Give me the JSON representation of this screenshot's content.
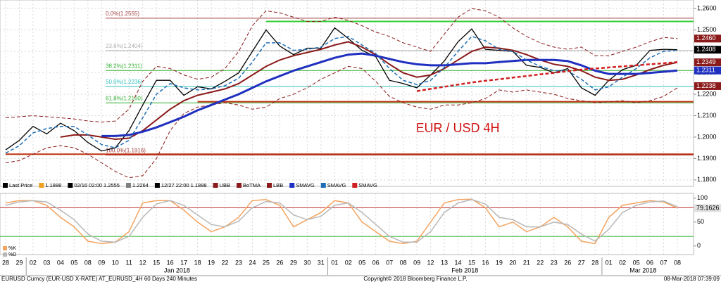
{
  "chart_data": [
    {
      "type": "line",
      "annotation": "EUR / USD 4H",
      "categories": [
        "28",
        "29",
        "02",
        "03",
        "04",
        "05",
        "08",
        "09",
        "10",
        "11",
        "12",
        "15",
        "16",
        "17",
        "18",
        "19",
        "22",
        "23",
        "24",
        "25",
        "26",
        "29",
        "30",
        "31",
        "01",
        "02",
        "05",
        "06",
        "07",
        "08",
        "09",
        "12",
        "13",
        "14",
        "15",
        "16",
        "19",
        "20",
        "21",
        "22",
        "23",
        "26",
        "27",
        "28",
        "01",
        "02",
        "05",
        "06",
        "07",
        "08"
      ],
      "month_labels": [
        "Jan 2018",
        "Feb 2018",
        "Mar 2018"
      ],
      "ylim": [
        1.177,
        1.264
      ],
      "yticks": [
        {
          "value": 1.18,
          "label": "1.1800"
        },
        {
          "value": 1.19,
          "label": "1.1900"
        },
        {
          "value": 1.2,
          "label": "1.2000"
        },
        {
          "value": 1.21,
          "label": "1.2100"
        },
        {
          "value": 1.22,
          "label": "1.2200"
        },
        {
          "value": 1.23,
          "label": "1.2300"
        },
        {
          "value": 1.24,
          "label": "1.2400"
        },
        {
          "value": 1.25,
          "label": "1.2500"
        },
        {
          "value": 1.26,
          "label": "1.2600"
        }
      ],
      "grid": true,
      "series": [
        {
          "name": "Last Price",
          "color": "#000000",
          "width": 1.3,
          "dash": false,
          "values": [
            1.194,
            1.1985,
            1.205,
            1.2015,
            1.2065,
            1.203,
            1.1975,
            1.1935,
            1.195,
            1.203,
            1.215,
            1.2265,
            1.2265,
            1.2195,
            1.2235,
            1.2225,
            1.226,
            1.23,
            1.24,
            1.25,
            1.2425,
            1.2385,
            1.2415,
            1.2415,
            1.251,
            1.246,
            1.2405,
            1.2375,
            1.2265,
            1.225,
            1.223,
            1.229,
            1.2355,
            1.2445,
            1.2505,
            1.241,
            1.2405,
            1.24,
            1.2335,
            1.2325,
            1.23,
            1.232,
            1.223,
            1.2195,
            1.2265,
            1.2315,
            1.2335,
            1.2405,
            1.241,
            1.2408
          ]
        },
        {
          "name": "UBB",
          "color": "#8b1a1a",
          "width": 1,
          "dash": true,
          "values": [
            1.209,
            1.2095,
            1.21,
            1.2095,
            1.209,
            1.2085,
            1.2075,
            1.207,
            1.2075,
            1.213,
            1.226,
            1.233,
            1.232,
            1.229,
            1.227,
            1.228,
            1.232,
            1.24,
            1.252,
            1.259,
            1.258,
            1.256,
            1.254,
            1.254,
            1.256,
            1.2545,
            1.252,
            1.249,
            1.247,
            1.244,
            1.242,
            1.24,
            1.248,
            1.256,
            1.26,
            1.259,
            1.256,
            1.251,
            1.247,
            1.244,
            1.242,
            1.241,
            1.242,
            1.238,
            1.238,
            1.24,
            1.242,
            1.2445,
            1.2465,
            1.246
          ]
        },
        {
          "name": "BoTMA",
          "color": "#8b1a1a",
          "width": 2,
          "dash": false,
          "values": [
            null,
            null,
            null,
            null,
            1.2,
            1.201,
            1.201,
            1.2,
            1.199,
            1.1995,
            1.203,
            1.208,
            1.213,
            1.217,
            1.2195,
            1.221,
            1.2225,
            1.225,
            1.229,
            1.233,
            1.236,
            1.238,
            1.2395,
            1.241,
            1.243,
            1.2445,
            1.242,
            1.2385,
            1.234,
            1.23,
            1.228,
            1.229,
            1.232,
            1.236,
            1.24,
            1.242,
            1.2415,
            1.2405,
            1.2385,
            1.236,
            1.234,
            1.233,
            1.231,
            1.228,
            1.2265,
            1.227,
            1.229,
            1.2315,
            1.2335,
            1.2349
          ]
        },
        {
          "name": "LBB",
          "color": "#8b1a1a",
          "width": 1,
          "dash": true,
          "values": [
            1.188,
            1.189,
            1.192,
            1.195,
            1.196,
            1.195,
            1.192,
            1.188,
            1.184,
            1.181,
            1.182,
            1.19,
            1.203,
            1.211,
            1.214,
            1.215,
            1.216,
            1.215,
            1.213,
            1.214,
            1.218,
            1.22,
            1.223,
            1.227,
            1.23,
            1.233,
            1.232,
            1.226,
            1.219,
            1.216,
            1.214,
            1.213,
            1.215,
            1.215,
            1.216,
            1.218,
            1.222,
            1.221,
            1.222,
            1.221,
            1.22,
            1.218,
            1.217,
            1.216,
            1.2165,
            1.217,
            1.216,
            1.217,
            1.219,
            1.223
          ]
        },
        {
          "name": "SMAVG",
          "color": "#1f2fbf",
          "width": 3,
          "dash": false,
          "values": [
            null,
            null,
            null,
            null,
            null,
            null,
            null,
            1.2005,
            1.2005,
            1.201,
            1.2025,
            1.2045,
            1.207,
            1.2095,
            1.2125,
            1.215,
            1.2175,
            1.22,
            1.223,
            1.226,
            1.2285,
            1.231,
            1.233,
            1.235,
            1.237,
            1.2385,
            1.239,
            1.238,
            1.2365,
            1.235,
            1.234,
            1.2335,
            1.2335,
            1.234,
            1.2345,
            1.2345,
            1.235,
            1.2355,
            1.236,
            1.236,
            1.236,
            1.2355,
            1.2335,
            1.231,
            1.2295,
            1.2295,
            1.2295,
            1.23,
            1.2305,
            1.2311
          ]
        },
        {
          "name": "SMAVG",
          "color": "#1e6fb5",
          "width": 1.5,
          "dash": true,
          "values": [
            1.1925,
            1.196,
            1.202,
            1.204,
            1.205,
            1.205,
            1.201,
            1.1965,
            1.195,
            1.1985,
            1.209,
            1.22,
            1.225,
            1.223,
            1.222,
            1.2225,
            1.224,
            1.2275,
            1.235,
            1.244,
            1.244,
            1.2405,
            1.241,
            1.242,
            1.246,
            1.247,
            1.243,
            1.239,
            1.232,
            1.2265,
            1.2245,
            1.2265,
            1.2325,
            1.24,
            1.247,
            1.245,
            1.241,
            1.24,
            1.236,
            1.233,
            1.231,
            1.231,
            1.227,
            1.222,
            1.2235,
            1.228,
            1.232,
            1.237,
            1.24,
            1.2405
          ]
        },
        {
          "name": "SMAVG",
          "color": "#d02020",
          "width": 2.5,
          "dash": true,
          "values": [
            null,
            null,
            null,
            null,
            null,
            null,
            null,
            null,
            null,
            null,
            null,
            null,
            null,
            null,
            null,
            null,
            null,
            null,
            null,
            null,
            null,
            null,
            null,
            null,
            null,
            null,
            null,
            null,
            null,
            null,
            1.2215,
            1.2225,
            1.2235,
            1.2245,
            1.2255,
            1.2263,
            1.227,
            1.2278,
            1.2285,
            1.2293,
            1.23,
            1.2308,
            1.2315,
            1.232,
            1.2325,
            1.233,
            1.2335,
            1.234,
            1.2345,
            1.235
          ]
        }
      ],
      "legend_stats": [
        {
          "label": "1.1888",
          "color": "#f0a020"
        },
        {
          "label": "02/16 02:00 1.2555",
          "color": "#000000"
        },
        {
          "label": "1.2264",
          "color": "#808080"
        },
        {
          "label": "12/27 22:00 1.1888",
          "color": "#000000"
        }
      ],
      "fib_levels": [
        {
          "value": 1.2555,
          "label": "0.0%(1.2555)",
          "color": "#a04040"
        },
        {
          "value": 1.2404,
          "label": "23.6%(1.2404)",
          "color": "#b0b0b0"
        },
        {
          "value": 1.2311,
          "label": "38.2%(1.2311)",
          "color": "#30b030"
        },
        {
          "value": 1.2236,
          "label": "50.0%(1.2236)",
          "color": "#30c0c0"
        },
        {
          "value": 1.216,
          "label": "61.8%(1.2160)",
          "color": "#30b030"
        },
        {
          "value": 1.1916,
          "label": "100.0%(1.1916)",
          "color": "#a04040"
        }
      ],
      "levels": [
        {
          "value": 1.254,
          "color": "#33cc33",
          "from": 19
        },
        {
          "value": 1.2165,
          "color": "#c03010",
          "from": 14
        },
        {
          "value": 1.192,
          "color": "#c03010",
          "from": 0
        }
      ],
      "tags": [
        {
          "value": 1.246,
          "label": "1.2460",
          "color": "#8b1a1a"
        },
        {
          "value": 1.2408,
          "label": "1.2408",
          "color": "#000000"
        },
        {
          "value": 1.2349,
          "label": "1.2349",
          "color": "#8b1a1a"
        },
        {
          "value": 1.2311,
          "label": "1.2311",
          "color": "#1f2fbf"
        },
        {
          "value": 1.2238,
          "label": "1.2238",
          "color": "#8b1a1a"
        }
      ]
    },
    {
      "type": "line",
      "ylim": [
        -18,
        110
      ],
      "yticks": [
        0,
        50,
        100
      ],
      "series": [
        {
          "name": "%K",
          "color": "#f4a460",
          "width": 1.5,
          "dash": false,
          "values": [
            90,
            95,
            95,
            85,
            60,
            40,
            10,
            5,
            8,
            30,
            90,
            95,
            95,
            75,
            50,
            30,
            40,
            60,
            95,
            97,
            85,
            40,
            55,
            70,
            95,
            90,
            50,
            30,
            10,
            5,
            10,
            50,
            90,
            97,
            98,
            80,
            40,
            50,
            30,
            40,
            60,
            40,
            10,
            5,
            60,
            85,
            90,
            95,
            92,
            79.1626
          ]
        },
        {
          "name": "%D",
          "color": "#b8b8b8",
          "width": 1.5,
          "dash": false,
          "values": [
            85,
            92,
            95,
            92,
            75,
            55,
            25,
            10,
            8,
            20,
            60,
            88,
            95,
            85,
            65,
            45,
            40,
            52,
            80,
            93,
            90,
            65,
            55,
            62,
            85,
            90,
            70,
            45,
            20,
            8,
            8,
            30,
            70,
            90,
            97,
            88,
            60,
            55,
            40,
            40,
            50,
            45,
            25,
            10,
            35,
            70,
            85,
            92,
            94,
            82
          ]
        }
      ],
      "levels": [
        {
          "value": 80,
          "color": "#c03030"
        },
        {
          "value": 20,
          "color": "#30b030"
        }
      ],
      "tags": [
        {
          "value": 79.1626,
          "label": "79.1626",
          "color": "#e0e0e0"
        }
      ]
    }
  ],
  "footer": {
    "left": "EURUSD Curncy (EUR-USD X-RATE) AT_EURUSD_4H 60 Days 240 Minutes",
    "center": "Copyright© 2018 Bloomberg Finance L.P.",
    "right": "08-Mar-2018 07:39:09"
  }
}
